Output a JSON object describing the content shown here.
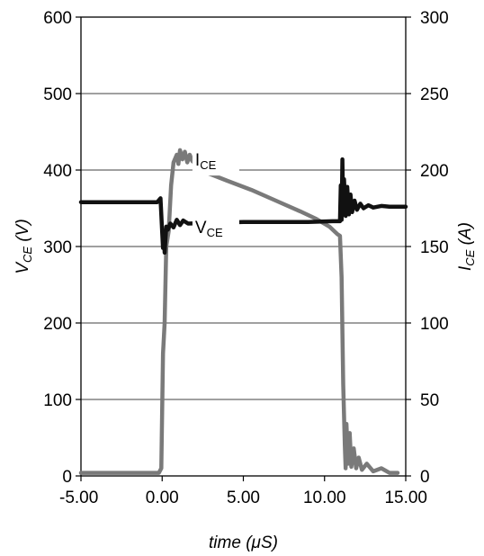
{
  "chart_data": {
    "type": "line",
    "xlabel": "time (μS)",
    "ylabel": {
      "main": "V",
      "sub": "CE",
      "rest": " (V)"
    },
    "y2label": {
      "main": "I",
      "sub": "CE",
      "rest": " (A)"
    },
    "xlim": [
      -5,
      15
    ],
    "ylim": [
      0,
      600
    ],
    "y2lim": [
      0,
      300
    ],
    "x_ticks": [
      -5,
      0,
      5,
      10,
      15
    ],
    "x_tick_labels": [
      "-5.00",
      "0.00",
      "5.00",
      "10.00",
      "15.00"
    ],
    "y_ticks": [
      0,
      100,
      200,
      300,
      400,
      500,
      600
    ],
    "y_tick_labels": [
      "0",
      "100",
      "200",
      "300",
      "400",
      "500",
      "600"
    ],
    "y2_ticks": [
      0,
      50,
      100,
      150,
      200,
      250,
      300
    ],
    "y2_tick_labels": [
      "0",
      "50",
      "100",
      "150",
      "200",
      "250",
      "300"
    ],
    "grid": "horizontal",
    "series": [
      {
        "label_main": "V",
        "label_sub": "CE",
        "color": "#111111",
        "axis": "left",
        "points": [
          [
            -5,
            358
          ],
          [
            -0.3,
            358
          ],
          [
            -0.1,
            363
          ],
          [
            0.0,
            318
          ],
          [
            0.05,
            298
          ],
          [
            0.1,
            318
          ],
          [
            0.15,
            292
          ],
          [
            0.25,
            326
          ],
          [
            0.35,
            322
          ],
          [
            0.5,
            330
          ],
          [
            0.7,
            325
          ],
          [
            0.9,
            335
          ],
          [
            1.1,
            328
          ],
          [
            1.3,
            334
          ],
          [
            1.6,
            330
          ],
          [
            3.0,
            331
          ],
          [
            5.0,
            332
          ],
          [
            7.0,
            332
          ],
          [
            9.0,
            332
          ],
          [
            10.5,
            333
          ],
          [
            10.95,
            333
          ],
          [
            11.0,
            380
          ],
          [
            11.05,
            335
          ],
          [
            11.1,
            414
          ],
          [
            11.15,
            345
          ],
          [
            11.2,
            388
          ],
          [
            11.3,
            340
          ],
          [
            11.4,
            378
          ],
          [
            11.5,
            342
          ],
          [
            11.6,
            368
          ],
          [
            11.7,
            345
          ],
          [
            11.85,
            360
          ],
          [
            12.0,
            348
          ],
          [
            12.2,
            356
          ],
          [
            12.4,
            350
          ],
          [
            12.7,
            354
          ],
          [
            13.0,
            351
          ],
          [
            13.5,
            353
          ],
          [
            14.0,
            352
          ],
          [
            15.0,
            352
          ]
        ]
      },
      {
        "label_main": "I",
        "label_sub": "CE",
        "color": "#7a7a7a",
        "axis": "right",
        "points": [
          [
            -5,
            2
          ],
          [
            -0.2,
            2
          ],
          [
            -0.05,
            5
          ],
          [
            0.05,
            80
          ],
          [
            0.15,
            100
          ],
          [
            0.25,
            150
          ],
          [
            0.4,
            160
          ],
          [
            0.55,
            190
          ],
          [
            0.7,
            205
          ],
          [
            0.9,
            210
          ],
          [
            1.0,
            204
          ],
          [
            1.1,
            213
          ],
          [
            1.25,
            207
          ],
          [
            1.4,
            212
          ],
          [
            1.55,
            205
          ],
          [
            1.7,
            210
          ],
          [
            1.85,
            206
          ],
          [
            2.8,
            198
          ],
          [
            4.0,
            193
          ],
          [
            5.5,
            187
          ],
          [
            7.0,
            180
          ],
          [
            8.5,
            173
          ],
          [
            9.5,
            168
          ],
          [
            10.3,
            163
          ],
          [
            10.8,
            158
          ],
          [
            10.95,
            157
          ],
          [
            11.05,
            130
          ],
          [
            11.15,
            60
          ],
          [
            11.25,
            20
          ],
          [
            11.3,
            5
          ],
          [
            11.35,
            34
          ],
          [
            11.45,
            8
          ],
          [
            11.55,
            28
          ],
          [
            11.65,
            6
          ],
          [
            11.8,
            18
          ],
          [
            11.95,
            5
          ],
          [
            12.1,
            12
          ],
          [
            12.3,
            4
          ],
          [
            12.6,
            8
          ],
          [
            13.0,
            3
          ],
          [
            13.5,
            5
          ],
          [
            14.0,
            2
          ],
          [
            14.5,
            2
          ]
        ]
      }
    ],
    "annotations": [
      {
        "main": "I",
        "sub": "CE",
        "x": 1.7,
        "y": 207,
        "axis": "right"
      },
      {
        "main": "V",
        "sub": "CE",
        "x": 1.7,
        "y": 326,
        "axis": "left"
      }
    ]
  }
}
